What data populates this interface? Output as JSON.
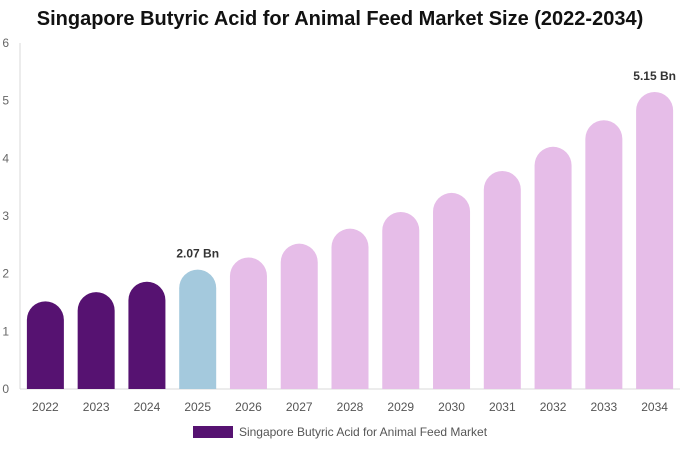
{
  "chart_data": {
    "type": "bar",
    "title": "Singapore Butyric Acid for Animal Feed Market Size (2022-2034)",
    "categories": [
      "2022",
      "2023",
      "2024",
      "2025",
      "2026",
      "2027",
      "2028",
      "2029",
      "2030",
      "2031",
      "2032",
      "2033",
      "2034"
    ],
    "series": [
      {
        "name": "Singapore Butyric Acid for Animal Feed Market",
        "values": [
          1.52,
          1.68,
          1.86,
          2.07,
          2.28,
          2.52,
          2.78,
          3.07,
          3.4,
          3.78,
          4.2,
          4.66,
          5.15
        ]
      }
    ],
    "bar_colors": [
      "#561271",
      "#561271",
      "#561271",
      "#a4c9dd",
      "#e6bde8",
      "#e6bde8",
      "#e6bde8",
      "#e6bde8",
      "#e6bde8",
      "#e6bde8",
      "#e6bde8",
      "#e6bde8",
      "#e6bde8"
    ],
    "data_labels": [
      {
        "index": 3,
        "text": "2.07 Bn"
      },
      {
        "index": 12,
        "text": "5.15 Bn"
      }
    ],
    "ylim": [
      0,
      6
    ],
    "yticks": [
      0,
      1,
      2,
      3,
      4,
      5,
      6
    ],
    "xlabel": "",
    "ylabel": "",
    "grid": false,
    "legend_position": "bottom",
    "legend_color": "#561271"
  }
}
